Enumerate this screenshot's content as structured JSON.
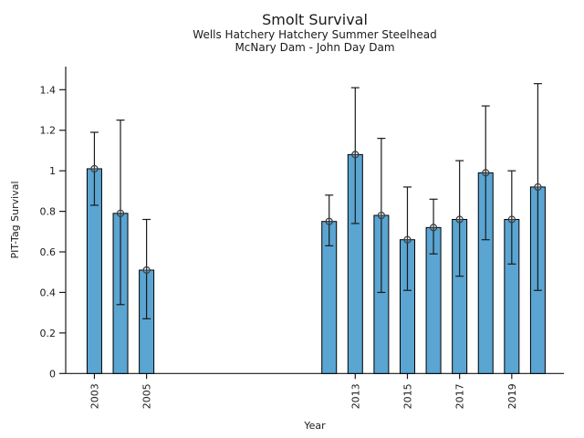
{
  "chart_data": {
    "type": "bar",
    "title": "Smolt Survival",
    "subtitle": [
      "Wells Hatchery Hatchery Summer Steelhead",
      "McNary Dam - John Day Dam"
    ],
    "xlabel": "Year",
    "ylabel": "PIT-Tag Survival",
    "categories": [
      2003,
      2004,
      2005,
      2012,
      2013,
      2014,
      2015,
      2016,
      2017,
      2018,
      2019,
      2020
    ],
    "values": [
      1.01,
      0.79,
      0.51,
      0.75,
      1.08,
      0.78,
      0.66,
      0.72,
      0.76,
      0.99,
      0.76,
      0.92
    ],
    "error_low": [
      0.83,
      0.34,
      0.27,
      0.63,
      0.74,
      0.4,
      0.41,
      0.59,
      0.48,
      0.66,
      0.54,
      0.41
    ],
    "error_high": [
      1.19,
      1.25,
      0.76,
      0.88,
      1.41,
      1.16,
      0.92,
      0.86,
      1.05,
      1.32,
      1.0,
      1.43
    ],
    "xticks": [
      2003,
      2005,
      2013,
      2015,
      2017,
      2019
    ],
    "xtick_labels": [
      "2003",
      "2005",
      "2013",
      "2015",
      "2017",
      "2019"
    ],
    "yticks": [
      0,
      0.2,
      0.4,
      0.6,
      0.8,
      1.0,
      1.2,
      1.4
    ],
    "ytick_labels": [
      "0",
      "0.2",
      "0.4",
      "0.6",
      "0.8",
      "1",
      "1.2",
      "1.4"
    ],
    "xlim": [
      2001.9,
      2021.0
    ],
    "ylim": [
      0,
      1.514
    ],
    "grid": false,
    "legend_position": "none",
    "marker_style": "circle-plus",
    "colors": {
      "bar_fill": "#5AA5D2",
      "bar_edge": "#000000",
      "error_bar": "#1a1a1a",
      "marker": "#3c3c3c"
    }
  }
}
